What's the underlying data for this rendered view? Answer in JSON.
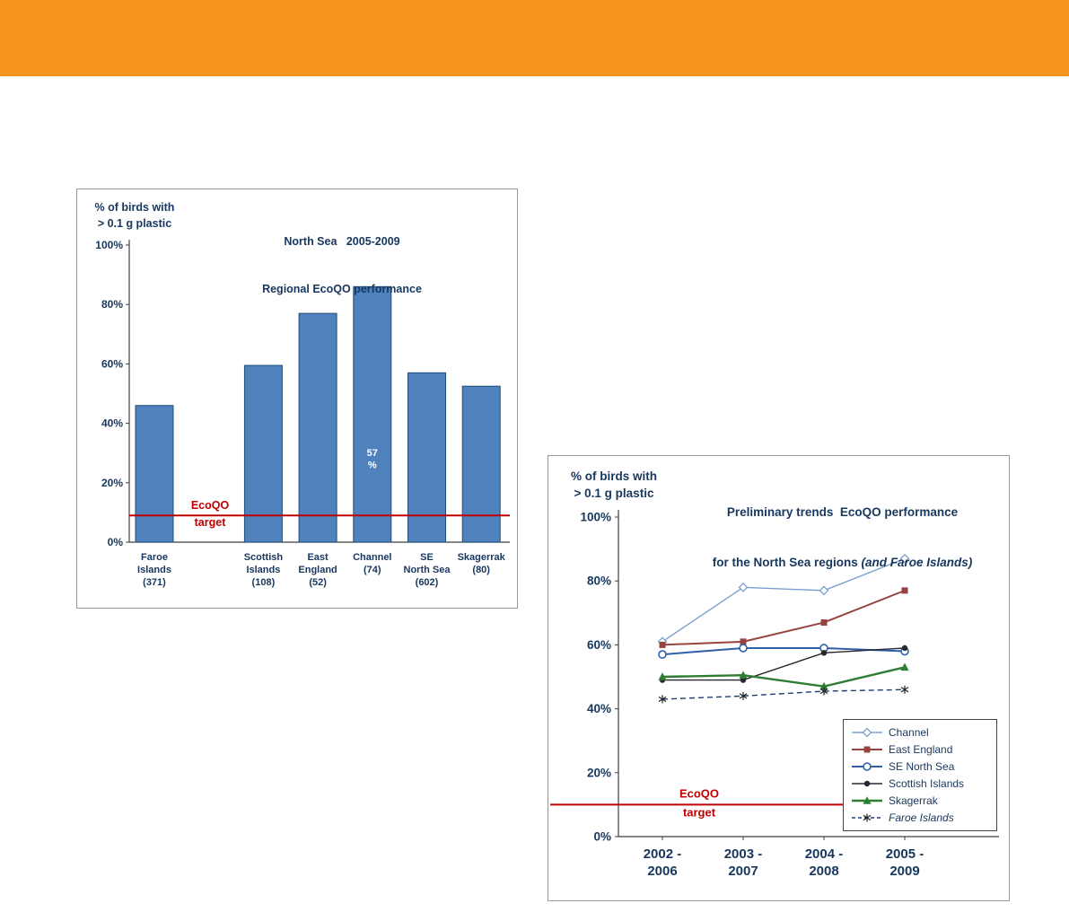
{
  "banner": {
    "color": "#F7941E"
  },
  "colors": {
    "navy_text": "#17375E",
    "target_red": "#C00000",
    "bar_fill": "#4F81BD",
    "bar_stroke": "#1F4E79",
    "axis": "#3F3F3F",
    "panel_border": "#999999"
  },
  "bar_chart": {
    "y_axis_label": [
      "% of birds with",
      "> 0.1 g plastic"
    ],
    "title": [
      "North Sea   2005-2009",
      "Regional EcoQO performance"
    ]
  },
  "line_chart": {
    "y_axis_label": [
      "% of birds with",
      "> 0.1 g plastic"
    ],
    "title_line1": "Preliminary trends  EcoQO performance",
    "title_line2_main": "for the North Sea regions",
    "title_line2_italic": "(and Faroe Islands)"
  },
  "chart_data": [
    {
      "type": "bar",
      "title": "North Sea 2005-2009 Regional EcoQO performance",
      "ylabel": "% of birds with > 0.1 g plastic",
      "ylim": [
        0,
        100
      ],
      "ytick_step": 20,
      "ytick_labels": [
        "0%",
        "20%",
        "40%",
        "60%",
        "80%",
        "100%"
      ],
      "categories": [
        "Faroe\nIslands\n(371)",
        "Scottish\nIslands\n(108)",
        "East\nEngland\n(52)",
        "Channel\n(74)",
        "SE\nNorth Sea\n(602)",
        "Skagerrak\n(80)"
      ],
      "values": [
        46,
        59.5,
        77,
        86,
        57,
        52.5
      ],
      "slots": [
        0,
        2,
        3,
        4,
        5,
        6
      ],
      "n_slots": 7,
      "annotation": {
        "category_index": 3,
        "lines": [
          "57",
          "%"
        ],
        "at_values": [
          29,
          25
        ]
      },
      "target": {
        "value": 9,
        "label_lines": [
          "EcoQO",
          "target"
        ]
      },
      "grid": false
    },
    {
      "type": "line",
      "title": "Preliminary trends EcoQO performance for the North Sea regions (and Faroe Islands)",
      "ylabel": "% of birds with > 0.1 g plastic",
      "ylim": [
        0,
        100
      ],
      "ytick_step": 20,
      "ytick_labels": [
        "0%",
        "20%",
        "40%",
        "60%",
        "80%",
        "100%"
      ],
      "x": [
        "2002 -\n2006",
        "2003 -\n2007",
        "2004 -\n2008",
        "2005 -\n2009"
      ],
      "series": [
        {
          "name": "Channel",
          "color": "#7BA0D0",
          "marker": "diamond-open",
          "dashed": false,
          "width": 1.4,
          "values": [
            61,
            78,
            77,
            87
          ]
        },
        {
          "name": "East England",
          "color": "#97433F",
          "marker": "square-filled",
          "dashed": false,
          "width": 2.0,
          "values": [
            60,
            61,
            67,
            77
          ]
        },
        {
          "name": "SE North Sea",
          "color": "#2E5FA8",
          "marker": "circle-open",
          "dashed": false,
          "width": 2.0,
          "values": [
            57,
            59,
            59,
            58
          ]
        },
        {
          "name": "Scottish Islands",
          "color": "#26262E",
          "marker": "circle-filled",
          "dashed": false,
          "width": 1.4,
          "values": [
            49,
            49,
            57.5,
            59
          ]
        },
        {
          "name": "Skagerrak",
          "color": "#2E7D32",
          "marker": "triangle-filled",
          "dashed": false,
          "width": 2.4,
          "values": [
            50,
            50.5,
            47,
            53
          ]
        },
        {
          "name": "Faroe Islands",
          "color": "#1F3B73",
          "marker": "asterisk",
          "dashed": true,
          "width": 1.4,
          "values": [
            43,
            44,
            45.5,
            46
          ],
          "italic": true
        }
      ],
      "target": {
        "value": 10,
        "label_lines": [
          "EcoQO",
          "target"
        ]
      },
      "legend_position": "bottom-right",
      "grid": false
    }
  ]
}
